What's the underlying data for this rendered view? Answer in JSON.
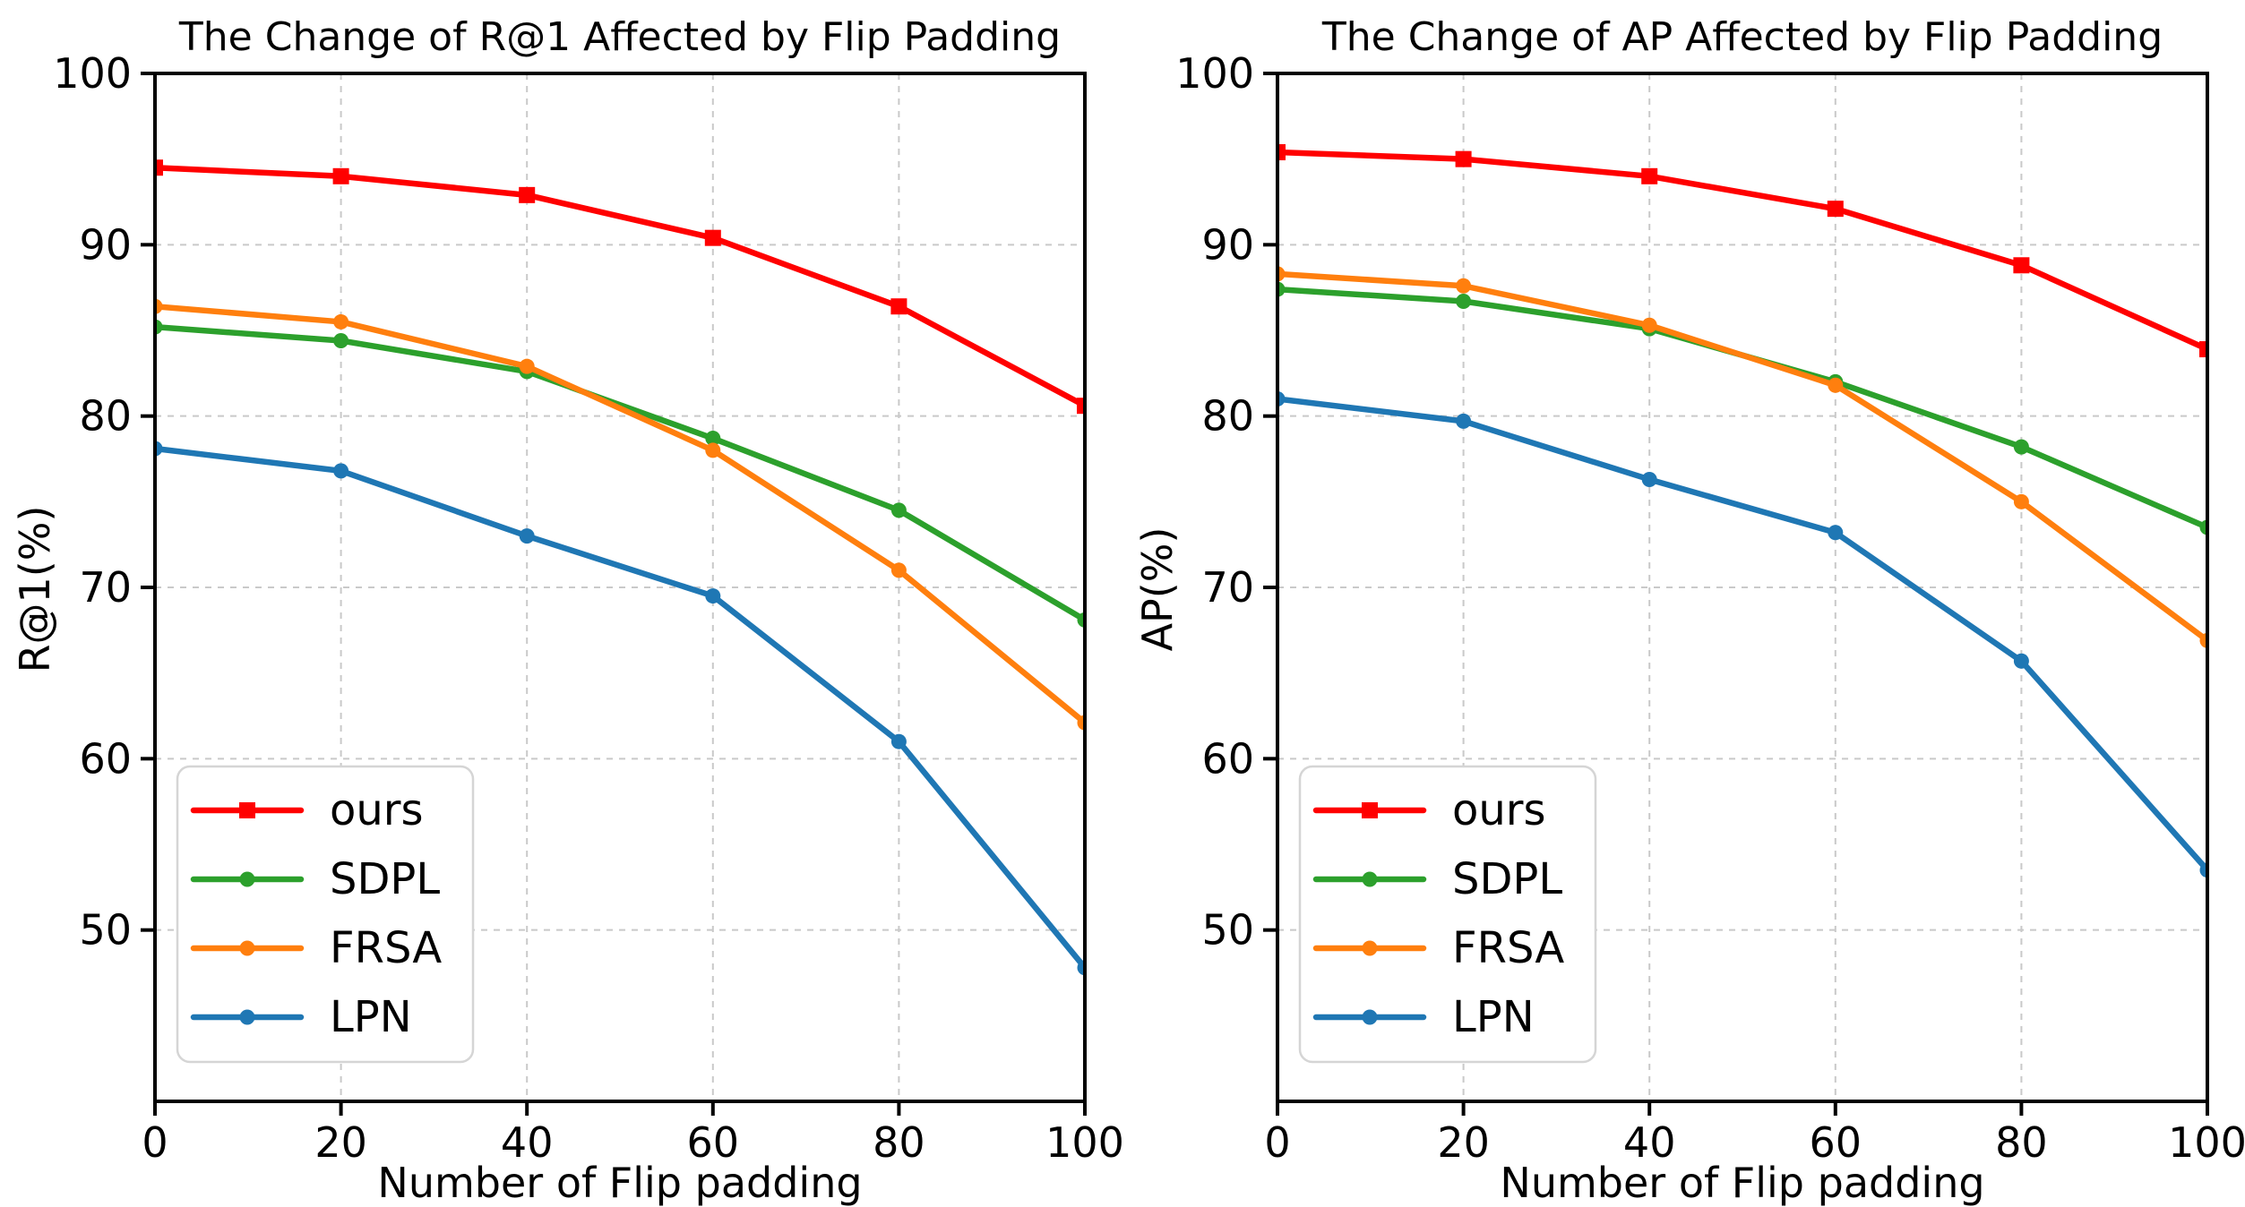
{
  "figure": {
    "background": "#ffffff",
    "grid_color": "#c9c9c9",
    "spine_color": "#000000",
    "legend_border_color": "#d5d5d5"
  },
  "chart_data": [
    {
      "type": "line",
      "title": "The Change of R@1 Affected by Flip Padding",
      "xlabel": "Number of Flip padding",
      "ylabel": "R@1(%)",
      "x": [
        0,
        20,
        40,
        60,
        80,
        100
      ],
      "xticks": [
        0,
        20,
        40,
        60,
        80,
        100
      ],
      "yticks": [
        50,
        60,
        70,
        80,
        90,
        100
      ],
      "xlim": [
        0,
        100
      ],
      "ylim": [
        40,
        100
      ],
      "grid": true,
      "legend_position": "lower left",
      "series": [
        {
          "name": "ours",
          "color": "#ff0000",
          "marker": "square",
          "values": [
            94.5,
            94.0,
            92.9,
            90.4,
            86.4,
            80.6
          ]
        },
        {
          "name": "SDPL",
          "color": "#2ca02c",
          "marker": "circle",
          "values": [
            85.2,
            84.4,
            82.6,
            78.7,
            74.5,
            68.1
          ]
        },
        {
          "name": "FRSA",
          "color": "#ff7f0e",
          "marker": "circle",
          "values": [
            86.4,
            85.5,
            82.9,
            78.0,
            71.0,
            62.1
          ]
        },
        {
          "name": "LPN",
          "color": "#1f77b4",
          "marker": "circle",
          "values": [
            78.1,
            76.8,
            73.0,
            69.5,
            61.0,
            47.8
          ]
        }
      ]
    },
    {
      "type": "line",
      "title": "The Change of AP Affected by Flip Padding",
      "xlabel": "Number of Flip padding",
      "ylabel": "AP(%)",
      "x": [
        0,
        20,
        40,
        60,
        80,
        100
      ],
      "xticks": [
        0,
        20,
        40,
        60,
        80,
        100
      ],
      "yticks": [
        50,
        60,
        70,
        80,
        90,
        100
      ],
      "xlim": [
        0,
        100
      ],
      "ylim": [
        40,
        100
      ],
      "grid": true,
      "legend_position": "lower left",
      "series": [
        {
          "name": "ours",
          "color": "#ff0000",
          "marker": "square",
          "values": [
            95.4,
            95.0,
            94.0,
            92.1,
            88.8,
            83.9
          ]
        },
        {
          "name": "SDPL",
          "color": "#2ca02c",
          "marker": "circle",
          "values": [
            87.4,
            86.7,
            85.1,
            82.0,
            78.2,
            73.5
          ]
        },
        {
          "name": "FRSA",
          "color": "#ff7f0e",
          "marker": "circle",
          "values": [
            88.3,
            87.6,
            85.3,
            81.8,
            75.0,
            66.9
          ]
        },
        {
          "name": "LPN",
          "color": "#1f77b4",
          "marker": "circle",
          "values": [
            81.0,
            79.7,
            76.3,
            73.2,
            65.7,
            53.5
          ]
        }
      ]
    }
  ]
}
